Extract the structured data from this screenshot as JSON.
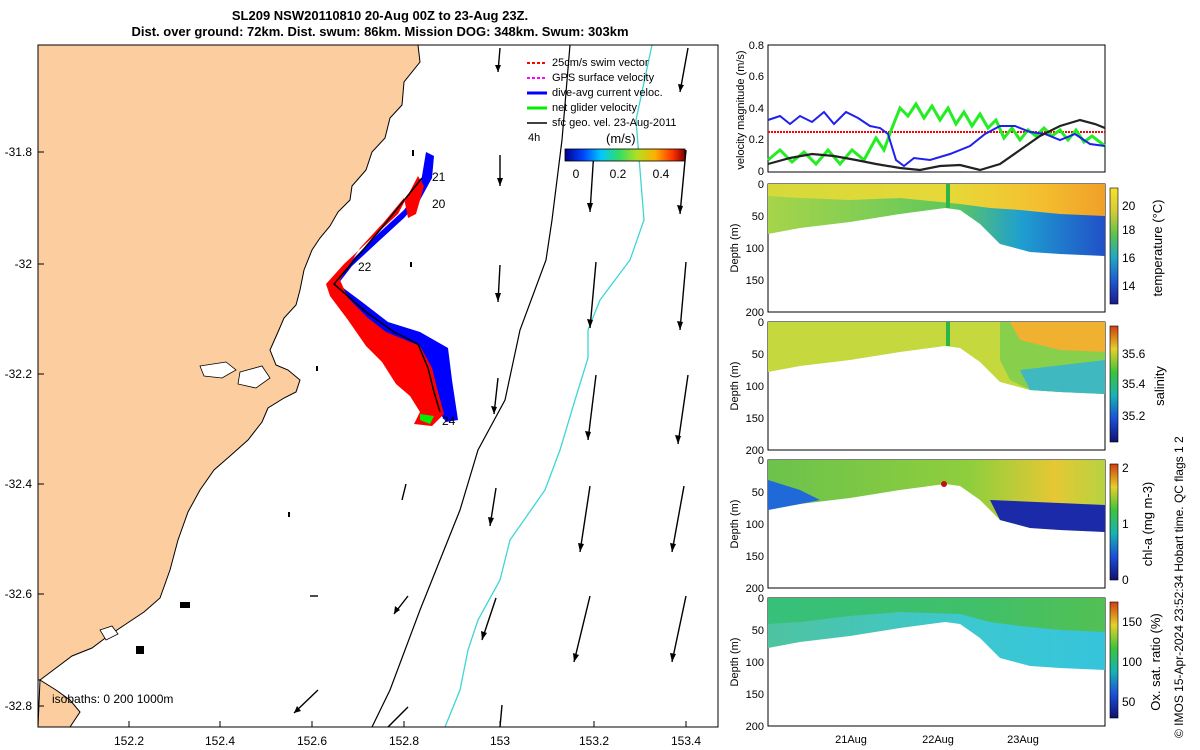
{
  "title": {
    "line1": "SL209 NSW20110810 20-Aug 00Z to 23-Aug 23Z.",
    "line2": "Dist. over ground: 72km. Dist. swum: 86km. Mission DOG: 348km. Swum: 303km"
  },
  "map": {
    "x_ticks": [
      "152.2",
      "152.4",
      "152.6",
      "152.8",
      "153",
      "153.2",
      "153.4"
    ],
    "y_ticks": [
      "-31.8",
      "-32",
      "-32.2",
      "-32.4",
      "-32.6",
      "-32.8"
    ],
    "legend": [
      {
        "label": "25cm/s swim vector",
        "color": "#ff0000"
      },
      {
        "label": "GPS surface velocity",
        "color": "#ff00ff"
      },
      {
        "label": "dive-avg current veloc.",
        "color": "#0000ff"
      },
      {
        "label": "net glider velocity",
        "color": "#00ee00"
      },
      {
        "label": "sfc geo. vel. 23-Aug-2011",
        "color": "#000000"
      }
    ],
    "interval_label": "4h",
    "colorbar_unit": "(m/s)",
    "colorbar_ticks": [
      "0",
      "0.2",
      "0.4"
    ],
    "day_labels": [
      "21",
      "20",
      "22",
      "24"
    ],
    "isobaths_label": "isobaths: 0   200  1000m",
    "land_color": "#fbcd9f"
  },
  "velocity_panel": {
    "ylabel": "velocity magnitude (m/s)",
    "y_ticks": [
      "0",
      "0.2",
      "0.4",
      "0.6",
      "0.8"
    ]
  },
  "sections": [
    {
      "id": "temperature",
      "cbar_label": "temperature (°C)",
      "cbar_ticks": [
        "14",
        "16",
        "18",
        "20"
      ]
    },
    {
      "id": "salinity",
      "cbar_label": "salinity",
      "cbar_ticks": [
        "35.2",
        "35.4",
        "35.6"
      ]
    },
    {
      "id": "chla",
      "cbar_label": "chl-a (mg m-3)",
      "cbar_ticks": [
        "0",
        "1",
        "2"
      ]
    },
    {
      "id": "oxygen",
      "cbar_label": "Ox. sat. ratio (%)",
      "cbar_ticks": [
        "50",
        "100",
        "150"
      ]
    }
  ],
  "section_ylabel": "Depth (m)",
  "section_y_ticks": [
    "0",
    "50",
    "100",
    "150",
    "200"
  ],
  "time_ticks": [
    "21Aug",
    "22Aug",
    "23Aug"
  ],
  "side_note": "© IMOS 15-Apr-2024 23:52:34 Hobart time. QC flags 1  2"
}
